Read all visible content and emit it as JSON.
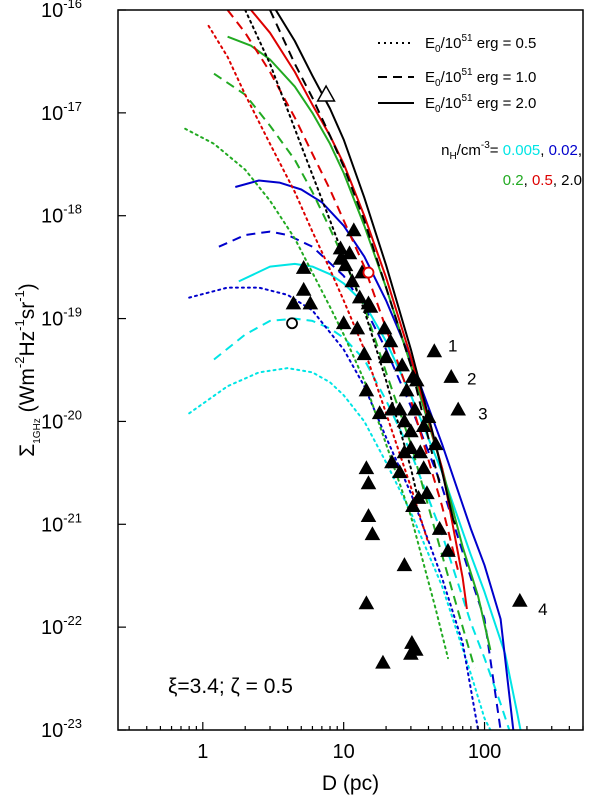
{
  "chart_data": {
    "type": "line",
    "xscale": "log",
    "yscale": "log",
    "xlim": [
      0.25,
      500
    ],
    "ylim": [
      1e-23,
      1e-16
    ],
    "grid": false,
    "xlabel": "D (pc)",
    "ylabel": {
      "symbol": "Σ",
      "subscript": "1GHz",
      "units": [
        {
          "t": "(Wm"
        },
        {
          "t": "-2",
          "sup": true
        },
        {
          "t": "Hz"
        },
        {
          "t": "-1",
          "sup": true
        },
        {
          "t": "sr"
        },
        {
          "t": "-1",
          "sup": true
        },
        {
          "t": ")"
        }
      ]
    },
    "x_ticks": [
      {
        "value": 1,
        "label": "1"
      },
      {
        "value": 10,
        "label": "10"
      },
      {
        "value": 100,
        "label": "100"
      }
    ],
    "y_ticks": [
      {
        "value": 1e-16,
        "base": "10",
        "exp": "-16"
      },
      {
        "value": 1e-17,
        "base": "10",
        "exp": "-17"
      },
      {
        "value": 1e-18,
        "base": "10",
        "exp": "-18"
      },
      {
        "value": 1e-19,
        "base": "10",
        "exp": "-19"
      },
      {
        "value": 1e-20,
        "base": "10",
        "exp": "-20"
      },
      {
        "value": 1e-21,
        "base": "10",
        "exp": "-21"
      },
      {
        "value": 1e-22,
        "base": "10",
        "exp": "-22"
      },
      {
        "value": 1e-23,
        "base": "10",
        "exp": "-23"
      }
    ],
    "legend_position": "top-right",
    "legend": [
      {
        "style": "dotted",
        "pre": "E",
        "sub": "0",
        "mid": "/10",
        "sup": "51",
        "post": " erg = 0.5"
      },
      {
        "style": "dashed",
        "pre": "E",
        "sub": "0",
        "mid": "/10",
        "sup": "51",
        "post": " erg = 1.0"
      },
      {
        "style": "solid",
        "pre": "E",
        "sub": "0",
        "mid": "/10",
        "sup": "51",
        "post": " erg = 2.0"
      }
    ],
    "density_legend": {
      "line1": [
        {
          "t": "n",
          "color": "#000000"
        },
        {
          "t": "H",
          "color": "#000000",
          "sub": true
        },
        {
          "t": "/cm",
          "color": "#000000"
        },
        {
          "t": "-3",
          "color": "#000000",
          "sup": true
        },
        {
          "t": "= ",
          "color": "#000000"
        },
        {
          "t": "0.005",
          "color": "#00e5e5"
        },
        {
          "t": ", ",
          "color": "#000000"
        },
        {
          "t": "0.02",
          "color": "#0000cc"
        },
        {
          "t": ",",
          "color": "#000000"
        }
      ],
      "line2": [
        {
          "t": "0.2",
          "color": "#22aa22"
        },
        {
          "t": ", ",
          "color": "#000000"
        },
        {
          "t": "0.5",
          "color": "#dd0000"
        },
        {
          "t": ", 2.0",
          "color": "#000000"
        }
      ]
    },
    "series": [
      {
        "color": "#00e5e5",
        "style": "dotted",
        "points": [
          [
            0.8,
            1.2e-20
          ],
          [
            1.5,
            2.2e-20
          ],
          [
            2.5,
            3e-20
          ],
          [
            4,
            3.3e-20
          ],
          [
            6,
            3e-20
          ],
          [
            8,
            2.4e-20
          ],
          [
            10,
            1.8e-20
          ],
          [
            14,
            1e-20
          ],
          [
            20,
            4e-21
          ],
          [
            30,
            1.3e-21
          ],
          [
            50,
            2.5e-22
          ],
          [
            80,
            3.5e-23
          ],
          [
            100,
            1.3e-23
          ],
          [
            110,
            1e-23
          ]
        ]
      },
      {
        "color": "#00e5e5",
        "style": "dashed",
        "points": [
          [
            1.2,
            4e-20
          ],
          [
            2,
            7e-20
          ],
          [
            3,
            9.5e-20
          ],
          [
            4.5,
            1e-19
          ],
          [
            6,
            9.5e-20
          ],
          [
            8,
            8e-20
          ],
          [
            10,
            6.5e-20
          ],
          [
            14,
            4e-20
          ],
          [
            20,
            1.6e-20
          ],
          [
            30,
            5e-21
          ],
          [
            50,
            8e-22
          ],
          [
            80,
            1.1e-22
          ],
          [
            100,
            5e-23
          ],
          [
            130,
            1.8e-23
          ],
          [
            150,
            1e-23
          ]
        ]
      },
      {
        "color": "#00e5e5",
        "style": "solid",
        "points": [
          [
            1.8,
            2.3e-19
          ],
          [
            3,
            3.2e-19
          ],
          [
            4.5,
            3.4e-19
          ],
          [
            6,
            3.2e-19
          ],
          [
            8,
            2.7e-19
          ],
          [
            10,
            2.2e-19
          ],
          [
            14,
            1.4e-19
          ],
          [
            20,
            6e-20
          ],
          [
            30,
            1.8e-20
          ],
          [
            50,
            3.2e-21
          ],
          [
            80,
            5e-22
          ],
          [
            100,
            2.2e-22
          ],
          [
            140,
            5.5e-23
          ],
          [
            170,
            1.5e-23
          ],
          [
            180,
            1e-23
          ]
        ]
      },
      {
        "color": "#0000cc",
        "style": "dotted",
        "points": [
          [
            0.8,
            1.6e-19
          ],
          [
            1.5,
            2e-19
          ],
          [
            2.5,
            2e-19
          ],
          [
            4,
            1.7e-19
          ],
          [
            6,
            1.2e-19
          ],
          [
            10,
            5e-20
          ],
          [
            14,
            2.2e-20
          ],
          [
            20,
            7e-21
          ],
          [
            30,
            2e-21
          ],
          [
            50,
            3e-22
          ],
          [
            70,
            7e-23
          ],
          [
            90,
            1e-23
          ]
        ]
      },
      {
        "color": "#0000cc",
        "style": "dashed",
        "points": [
          [
            1.3,
            5e-19
          ],
          [
            2,
            6.5e-19
          ],
          [
            3,
            7e-19
          ],
          [
            4,
            6.5e-19
          ],
          [
            6,
            5e-19
          ],
          [
            10,
            2.6e-19
          ],
          [
            14,
            1.3e-19
          ],
          [
            20,
            5e-20
          ],
          [
            30,
            1.4e-20
          ],
          [
            50,
            2.3e-21
          ],
          [
            80,
            3e-22
          ],
          [
            100,
            1.2e-22
          ],
          [
            130,
            1e-23
          ]
        ]
      },
      {
        "color": "#0000cc",
        "style": "solid",
        "points": [
          [
            1.7,
            1.9e-18
          ],
          [
            2.5,
            2.2e-18
          ],
          [
            3.5,
            2.1e-18
          ],
          [
            5,
            1.8e-18
          ],
          [
            7,
            1.35e-18
          ],
          [
            10,
            8e-19
          ],
          [
            14,
            4e-19
          ],
          [
            20,
            1.5e-19
          ],
          [
            30,
            4e-20
          ],
          [
            50,
            6e-21
          ],
          [
            80,
            9e-22
          ],
          [
            100,
            4e-22
          ],
          [
            130,
            1.2e-22
          ],
          [
            160,
            1e-23
          ]
        ]
      },
      {
        "color": "#22aa22",
        "style": "dotted",
        "points": [
          [
            0.75,
            7e-18
          ],
          [
            1.2,
            5e-18
          ],
          [
            2,
            2.8e-18
          ],
          [
            3,
            1.4e-18
          ],
          [
            4.5,
            6e-19
          ],
          [
            6,
            2.8e-19
          ],
          [
            8,
            1.3e-19
          ],
          [
            10,
            7e-20
          ],
          [
            14,
            2.5e-20
          ],
          [
            20,
            6e-21
          ],
          [
            30,
            1.2e-21
          ],
          [
            45,
            1.5e-22
          ],
          [
            55,
            5e-23
          ]
        ]
      },
      {
        "color": "#22aa22",
        "style": "dashed",
        "points": [
          [
            1.2,
            2.4e-17
          ],
          [
            2,
            1.5e-17
          ],
          [
            3,
            7.5e-18
          ],
          [
            4.5,
            3.5e-18
          ],
          [
            6,
            1.7e-18
          ],
          [
            8,
            7.5e-19
          ],
          [
            10,
            3.8e-19
          ],
          [
            14,
            1.3e-19
          ],
          [
            20,
            3e-20
          ],
          [
            30,
            6e-21
          ],
          [
            50,
            5e-22
          ],
          [
            70,
            1e-22
          ],
          [
            85,
            4e-23
          ]
        ]
      },
      {
        "color": "#22aa22",
        "style": "solid",
        "points": [
          [
            1.5,
            5.5e-17
          ],
          [
            2.2,
            4.5e-17
          ],
          [
            3,
            3.3e-17
          ],
          [
            4.5,
            1.8e-17
          ],
          [
            6,
            1e-17
          ],
          [
            8,
            5e-18
          ],
          [
            10,
            2.6e-18
          ],
          [
            14,
            8e-19
          ],
          [
            20,
            2e-19
          ],
          [
            30,
            3.5e-20
          ],
          [
            50,
            3.5e-21
          ],
          [
            70,
            6e-22
          ],
          [
            90,
            2e-22
          ],
          [
            110,
            6e-23
          ]
        ]
      },
      {
        "color": "#dd0000",
        "style": "dotted",
        "points": [
          [
            1.1,
            7e-17
          ],
          [
            1.5,
            3.5e-17
          ],
          [
            2,
            1.5e-17
          ],
          [
            3,
            5e-18
          ],
          [
            4.5,
            1.7e-18
          ],
          [
            6,
            7e-19
          ],
          [
            8,
            3e-19
          ],
          [
            10,
            1.5e-19
          ],
          [
            14,
            5e-20
          ],
          [
            20,
            1.2e-20
          ],
          [
            30,
            2.3e-21
          ],
          [
            40,
            6.5e-22
          ]
        ]
      },
      {
        "color": "#dd0000",
        "style": "dashed",
        "points": [
          [
            1.5,
            1e-16
          ],
          [
            2,
            6e-17
          ],
          [
            3,
            2.5e-17
          ],
          [
            4.5,
            9e-18
          ],
          [
            6,
            4e-18
          ],
          [
            8,
            1.8e-18
          ],
          [
            10,
            9e-19
          ],
          [
            14,
            3.2e-19
          ],
          [
            20,
            8e-20
          ],
          [
            30,
            1.6e-20
          ],
          [
            50,
            1.5e-21
          ],
          [
            65,
            3.5e-22
          ]
        ]
      },
      {
        "color": "#dd0000",
        "style": "solid",
        "points": [
          [
            2.2,
            1e-16
          ],
          [
            3,
            6e-17
          ],
          [
            4.5,
            2.5e-17
          ],
          [
            6,
            1.2e-17
          ],
          [
            8,
            6e-18
          ],
          [
            10,
            3.2e-18
          ],
          [
            14,
            1e-18
          ],
          [
            20,
            2.5e-19
          ],
          [
            30,
            4.2e-20
          ],
          [
            50,
            3.5e-21
          ],
          [
            70,
            3e-22
          ],
          [
            75,
            1.5e-22
          ]
        ]
      },
      {
        "color": "#000000",
        "style": "dotted",
        "points": [
          [
            2,
            1e-16
          ],
          [
            3,
            3e-17
          ],
          [
            4.5,
            7e-18
          ],
          [
            6,
            2.5e-18
          ],
          [
            8,
            9e-19
          ],
          [
            10,
            4e-19
          ],
          [
            14,
            1.2e-19
          ],
          [
            20,
            2.5e-20
          ],
          [
            30,
            3.5e-21
          ],
          [
            33,
            2e-21
          ]
        ]
      },
      {
        "color": "#000000",
        "style": "dashed",
        "points": [
          [
            3,
            1e-16
          ],
          [
            4.5,
            3e-17
          ],
          [
            6,
            1.4e-17
          ],
          [
            8,
            6e-18
          ],
          [
            10,
            3e-18
          ],
          [
            14,
            9e-19
          ],
          [
            20,
            2e-19
          ],
          [
            30,
            3.5e-20
          ],
          [
            45,
            3.5e-21
          ],
          [
            48,
            2.5e-21
          ]
        ]
      },
      {
        "color": "#000000",
        "style": "solid",
        "points": [
          [
            3.3,
            1e-16
          ],
          [
            4.5,
            5e-17
          ],
          [
            6,
            2.3e-17
          ],
          [
            8,
            1.1e-17
          ],
          [
            10,
            5.5e-18
          ],
          [
            14,
            1.5e-18
          ],
          [
            20,
            3.3e-19
          ],
          [
            30,
            5e-20
          ],
          [
            45,
            6e-21
          ],
          [
            60,
            1.1e-21
          ],
          [
            62,
            1e-21
          ]
        ]
      }
    ],
    "observed_points": [
      [
        9.5,
        4.8e-19
      ],
      [
        11,
        4.3e-19
      ],
      [
        11.8,
        7.2e-19
      ],
      [
        13.5,
        2.8e-19
      ],
      [
        9.5,
        3.8e-19
      ],
      [
        10.3,
        3.3e-19
      ],
      [
        5.2,
        3.1e-19
      ],
      [
        4.4,
        1.4e-19
      ],
      [
        5.8,
        1.4e-19
      ],
      [
        5.2,
        1.9e-19
      ],
      [
        11.5,
        2.3e-19
      ],
      [
        13,
        1.6e-19
      ],
      [
        15,
        1.4e-19
      ],
      [
        15.5,
        1.3e-19
      ],
      [
        10,
        9e-20
      ],
      [
        12.5,
        8e-20
      ],
      [
        19.5,
        8e-20
      ],
      [
        21.5,
        6e-20
      ],
      [
        14,
        4.5e-20
      ],
      [
        20,
        4.2e-20
      ],
      [
        26,
        3.5e-20
      ],
      [
        31,
        2.7e-20
      ],
      [
        33,
        2.5e-20
      ],
      [
        28,
        2e-20
      ],
      [
        14.5,
        2e-20
      ],
      [
        22,
        1.3e-20
      ],
      [
        18,
        1.2e-20
      ],
      [
        27,
        1e-20
      ],
      [
        30,
        8e-21
      ],
      [
        25,
        1.3e-20
      ],
      [
        32,
        1.3e-20
      ],
      [
        37,
        9e-21
      ],
      [
        40,
        1.1e-20
      ],
      [
        45,
        6e-21
      ],
      [
        30,
        5.5e-21
      ],
      [
        35,
        5e-21
      ],
      [
        27,
        5e-21
      ],
      [
        22,
        4e-21
      ],
      [
        37,
        3.5e-21
      ],
      [
        25,
        3.2e-21
      ],
      [
        14.5,
        3.5e-21
      ],
      [
        15,
        2.5e-21
      ],
      [
        39,
        2e-21
      ],
      [
        34,
        1.8e-21
      ],
      [
        31,
        1.5e-21
      ],
      [
        15,
        1.2e-21
      ],
      [
        16,
        8e-22
      ],
      [
        48,
        9e-22
      ],
      [
        55,
        5.5e-22
      ],
      [
        27,
        4e-22
      ],
      [
        14.5,
        1.7e-22
      ],
      [
        30.5,
        7e-23
      ],
      [
        32.5,
        6e-23
      ],
      [
        30,
        5.5e-23
      ],
      [
        19,
        4.5e-23
      ],
      [
        44,
        4.8e-20
      ],
      [
        58,
        2.7e-20
      ],
      [
        65,
        1.3e-20
      ],
      [
        178,
        1.8e-22
      ]
    ],
    "open_triangle": [
      7.5,
      1.5e-17
    ],
    "open_circles": [
      {
        "x": 4.3,
        "y": 9e-20,
        "color": "#000000"
      },
      {
        "x": 15,
        "y": 2.8e-19,
        "color": "#dd0000"
      }
    ],
    "point_labels": [
      {
        "text": "1",
        "x": 55,
        "y": 5.5e-20
      },
      {
        "text": "2",
        "x": 75,
        "y": 2.6e-20
      },
      {
        "text": "3",
        "x": 90,
        "y": 1.2e-20
      },
      {
        "text": "4",
        "x": 240,
        "y": 1.5e-22
      }
    ],
    "annotation": "ξ=3.4; ζ = 0.5"
  }
}
